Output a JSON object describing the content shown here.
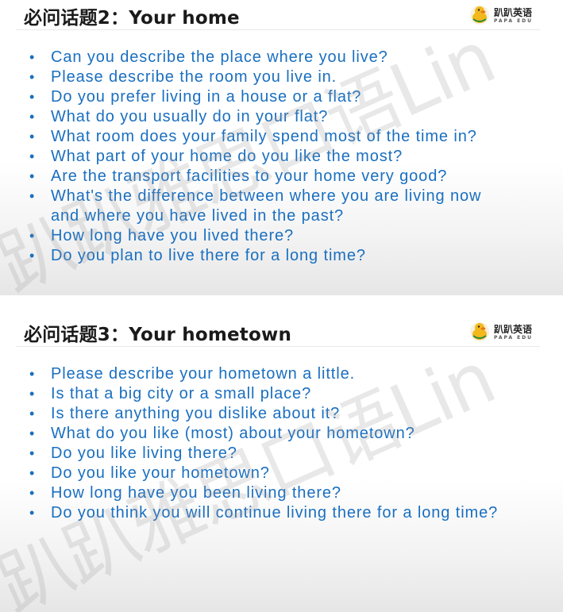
{
  "slides": [
    {
      "title": "必问话题2：Your home",
      "logo_cn": "趴趴英语",
      "logo_en": "PAPA EDU",
      "questions": [
        "Can you describe the place where you live?",
        "Please describe the room you live in.",
        "Do you prefer living in a house or a flat?",
        "What do you usually do in your flat?",
        "What room does your family spend most of the time in?",
        "What part of your home do you like the most?",
        "Are the transport facilities to your home very good?",
        "What's the difference between where you are living now",
        "How long have you lived there?",
        "Do you plan to live there for a long time?"
      ],
      "question_8_continued": "and where you have lived in the past?"
    },
    {
      "title": "必问话题3：Your hometown",
      "logo_cn": "趴趴英语",
      "logo_en": "PAPA EDU",
      "questions": [
        "Please describe your hometown a little.",
        "Is that a big city or a small place?",
        "Is there anything you dislike about it?",
        "What do you like (most) about your hometown?",
        "Do you like living there?",
        "Do you like your hometown?",
        "How long have you been living there?",
        "Do you think you will continue living there for a long time?"
      ]
    }
  ],
  "watermark": "趴趴雅思口语Lin",
  "colors": {
    "question_text": "#1a6fc0",
    "title_text": "#1a1a1a",
    "logo_duck": "#f2b81c"
  },
  "icons": {
    "logo": "duck-logo-icon",
    "bullet": "bullet-dot"
  }
}
